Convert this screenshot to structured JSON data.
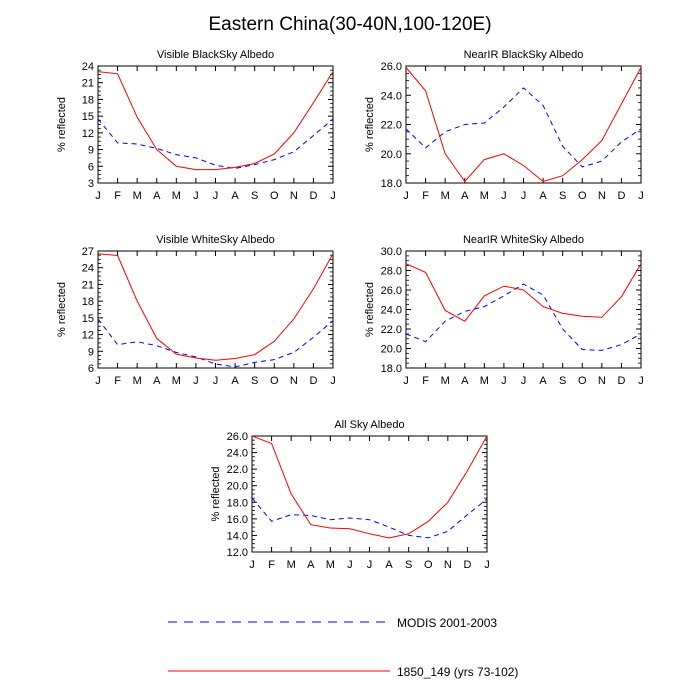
{
  "title": "Eastern China(30-40N,100-120E)",
  "legend": {
    "placement": "bottom-center",
    "items": [
      {
        "label": "MODIS 2001-2003",
        "color": "#0000ff",
        "dash": "dashed"
      },
      {
        "label": "1850_149 (yrs 73-102)",
        "color": "#ff0000",
        "dash": "solid"
      }
    ]
  },
  "chart_data": [
    {
      "type": "line",
      "title": "Visible BlackSky Albedo",
      "ylabel": "% reflected",
      "xlabel": "",
      "categories": [
        "J",
        "F",
        "M",
        "A",
        "M",
        "J",
        "J",
        "A",
        "S",
        "O",
        "N",
        "D",
        "J"
      ],
      "ylim": [
        3,
        24
      ],
      "yticks": [
        3,
        6,
        9,
        12,
        15,
        18,
        21,
        24
      ],
      "ytick_labels": [
        "3",
        "6",
        "9",
        "12",
        "15",
        "18",
        "21",
        "24"
      ],
      "series": [
        {
          "name": "MODIS 2001-2003",
          "color": "#0000ff",
          "dash": "dashed",
          "values": [
            14.5,
            10.2,
            10.0,
            9.2,
            8.1,
            7.5,
            6.2,
            5.6,
            6.3,
            7.2,
            8.6,
            11.5,
            14.5
          ]
        },
        {
          "name": "1850_149 (yrs 73-102)",
          "color": "#ff0000",
          "dash": "solid",
          "values": [
            23.0,
            22.6,
            14.8,
            9.0,
            6.0,
            5.4,
            5.4,
            5.8,
            6.5,
            8.2,
            12.0,
            17.4,
            23.0
          ]
        }
      ]
    },
    {
      "type": "line",
      "title": "NearIR BlackSky Albedo",
      "ylabel": "% reflected",
      "xlabel": "",
      "categories": [
        "J",
        "F",
        "M",
        "A",
        "M",
        "J",
        "J",
        "A",
        "S",
        "O",
        "N",
        "D",
        "J"
      ],
      "ylim": [
        18,
        26
      ],
      "yticks": [
        18,
        20,
        22,
        24,
        26
      ],
      "ytick_labels": [
        "18.0",
        "20.0",
        "22.0",
        "24.0",
        "26.0"
      ],
      "series": [
        {
          "name": "MODIS 2001-2003",
          "color": "#0000ff",
          "dash": "dashed",
          "values": [
            21.7,
            20.4,
            21.5,
            22.0,
            22.1,
            23.2,
            24.5,
            23.3,
            20.5,
            19.1,
            19.5,
            20.8,
            21.7
          ]
        },
        {
          "name": "1850_149 (yrs 73-102)",
          "color": "#ff0000",
          "dash": "solid",
          "values": [
            25.9,
            24.3,
            20.0,
            18.1,
            19.6,
            20.0,
            19.2,
            18.1,
            18.5,
            19.6,
            20.9,
            23.4,
            25.9
          ]
        }
      ]
    },
    {
      "type": "line",
      "title": "Visible WhiteSky Albedo",
      "ylabel": "% reflected",
      "xlabel": "",
      "categories": [
        "J",
        "F",
        "M",
        "A",
        "M",
        "J",
        "J",
        "A",
        "S",
        "O",
        "N",
        "D",
        "J"
      ],
      "ylim": [
        6,
        27
      ],
      "yticks": [
        6,
        9,
        12,
        15,
        18,
        21,
        24,
        27
      ],
      "ytick_labels": [
        "6",
        "9",
        "12",
        "15",
        "18",
        "21",
        "24",
        "27"
      ],
      "series": [
        {
          "name": "MODIS 2001-2003",
          "color": "#0000ff",
          "dash": "dashed",
          "values": [
            14.8,
            10.2,
            10.7,
            10.0,
            8.8,
            8.0,
            6.7,
            6.2,
            7.0,
            7.5,
            8.8,
            11.5,
            14.5
          ]
        },
        {
          "name": "1850_149 (yrs 73-102)",
          "color": "#ff0000",
          "dash": "solid",
          "values": [
            26.5,
            26.2,
            18.0,
            11.3,
            8.5,
            7.8,
            7.4,
            7.7,
            8.4,
            10.8,
            14.8,
            20.2,
            26.5
          ]
        }
      ]
    },
    {
      "type": "line",
      "title": "NearIR WhiteSky Albedo",
      "ylabel": "% reflected",
      "xlabel": "",
      "categories": [
        "J",
        "F",
        "M",
        "A",
        "M",
        "J",
        "J",
        "A",
        "S",
        "O",
        "N",
        "D",
        "J"
      ],
      "ylim": [
        18,
        30
      ],
      "yticks": [
        18,
        20,
        22,
        24,
        26,
        28,
        30
      ],
      "ytick_labels": [
        "18.0",
        "20.0",
        "22.0",
        "24.0",
        "26.0",
        "28.0",
        "30.0"
      ],
      "series": [
        {
          "name": "MODIS 2001-2003",
          "color": "#0000ff",
          "dash": "dashed",
          "values": [
            21.5,
            20.7,
            22.8,
            23.8,
            24.3,
            25.4,
            26.6,
            25.5,
            22.0,
            19.9,
            19.8,
            20.4,
            21.5
          ]
        },
        {
          "name": "1850_149 (yrs 73-102)",
          "color": "#ff0000",
          "dash": "solid",
          "values": [
            28.7,
            27.8,
            23.9,
            22.8,
            25.4,
            26.4,
            26.0,
            24.3,
            23.6,
            23.3,
            23.2,
            25.3,
            28.7
          ]
        }
      ]
    },
    {
      "type": "line",
      "title": "All Sky Albedo",
      "ylabel": "% reflected",
      "xlabel": "",
      "categories": [
        "J",
        "F",
        "M",
        "A",
        "M",
        "J",
        "J",
        "A",
        "S",
        "O",
        "N",
        "D",
        "J"
      ],
      "ylim": [
        12,
        26
      ],
      "yticks": [
        12,
        14,
        16,
        18,
        20,
        22,
        24,
        26
      ],
      "ytick_labels": [
        "12.0",
        "14.0",
        "16.0",
        "18.0",
        "20.0",
        "22.0",
        "24.0",
        "26.0"
      ],
      "series": [
        {
          "name": "MODIS 2001-2003",
          "color": "#0000ff",
          "dash": "dashed",
          "values": [
            18.5,
            15.7,
            16.5,
            16.4,
            15.9,
            16.1,
            15.9,
            15.0,
            14.0,
            13.7,
            14.5,
            16.5,
            18.4
          ]
        },
        {
          "name": "1850_149 (yrs 73-102)",
          "color": "#ff0000",
          "dash": "solid",
          "values": [
            26.0,
            25.1,
            19.0,
            15.3,
            14.9,
            14.8,
            14.2,
            13.7,
            14.2,
            15.7,
            18.0,
            21.8,
            26.0
          ]
        }
      ]
    }
  ]
}
